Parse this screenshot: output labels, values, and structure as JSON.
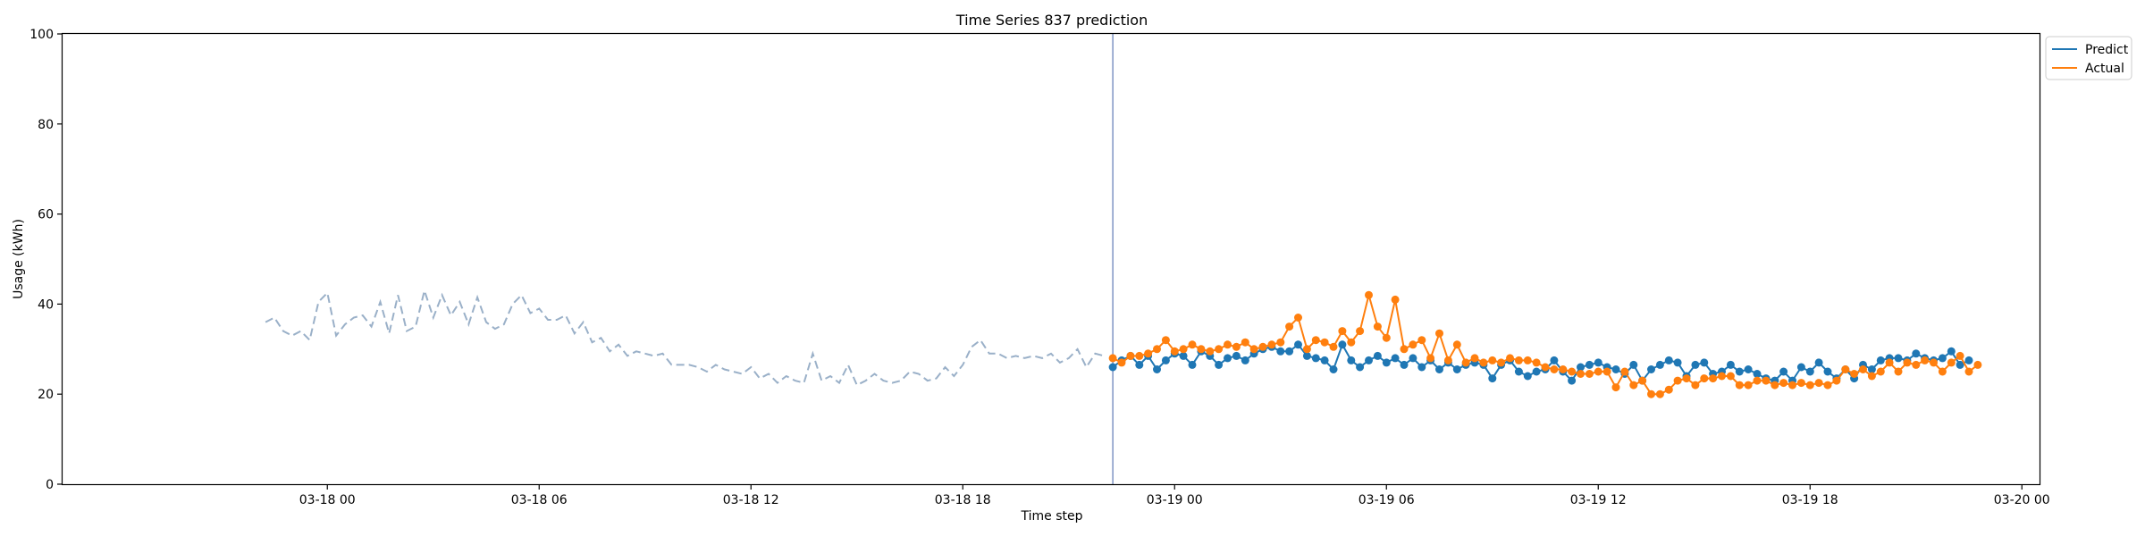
{
  "chart_data": {
    "type": "line",
    "title": "Time Series 837 prediction",
    "xlabel": "Time step",
    "ylabel": "Usage (kWh)",
    "ylim": [
      0,
      100
    ],
    "xlim": [
      "2024-03-17 16:30",
      "2024-03-20 00:30"
    ],
    "y_ticks": [
      0,
      20,
      40,
      60,
      80,
      100
    ],
    "x_ticks": [
      {
        "t": "2024-03-18 00:00",
        "label": "03-18 00"
      },
      {
        "t": "2024-03-18 06:00",
        "label": "03-18 06"
      },
      {
        "t": "2024-03-18 12:00",
        "label": "03-18 12"
      },
      {
        "t": "2024-03-18 18:00",
        "label": "03-18 18"
      },
      {
        "t": "2024-03-19 00:00",
        "label": "03-19 00"
      },
      {
        "t": "2024-03-19 06:00",
        "label": "03-19 06"
      },
      {
        "t": "2024-03-19 12:00",
        "label": "03-19 12"
      },
      {
        "t": "2024-03-19 18:00",
        "label": "03-19 18"
      },
      {
        "t": "2024-03-20 00:00",
        "label": "03-20 00"
      }
    ],
    "grid": false,
    "legend_position": "upper-right-outside",
    "forecast_start": "2024-03-18 22:15",
    "step_minutes": 15,
    "history": {
      "start": "2024-03-17 22:15",
      "color": "#9ab0c8",
      "values": [
        36,
        37,
        34,
        33,
        34,
        32,
        40.5,
        42.5,
        33,
        35.5,
        37,
        37.5,
        35,
        40.5,
        33.5,
        42,
        34,
        35,
        43,
        37,
        42,
        37.5,
        40.5,
        35.5,
        41.5,
        36,
        34.5,
        35.5,
        40,
        42,
        38,
        39,
        36.5,
        36.5,
        37.5,
        33.5,
        36,
        31.5,
        32.5,
        29.5,
        31,
        28.5,
        29.5,
        29,
        28.5,
        29,
        26.5,
        26.5,
        26.5,
        26,
        25,
        26.5,
        25.5,
        25,
        24.5,
        26,
        23.5,
        24.5,
        22.5,
        24,
        23,
        22.5,
        29,
        23,
        24,
        22.5,
        26.5,
        22,
        23,
        24.5,
        23,
        22.5,
        23,
        25,
        24.5,
        23,
        23.5,
        26,
        24,
        26.5,
        30.5,
        32,
        29,
        29,
        28,
        28.5,
        28,
        28.5,
        28,
        29,
        27,
        28,
        30,
        26,
        29,
        28.5
      ]
    },
    "series": [
      {
        "name": "Predict",
        "color": "#1f77b4",
        "start": "2024-03-18 22:15",
        "values": [
          26,
          27.5,
          28.5,
          26.5,
          28.5,
          25.5,
          27.5,
          29,
          28.5,
          26.5,
          29.5,
          28.5,
          26.5,
          28,
          28.5,
          27.5,
          29,
          30,
          30.5,
          29.5,
          29.5,
          31,
          28.5,
          28,
          27.5,
          25.5,
          31,
          27.5,
          26,
          27.5,
          28.5,
          27,
          28,
          26.5,
          28,
          26,
          27.5,
          25.5,
          27,
          25.5,
          26.5,
          27,
          26.5,
          23.5,
          26.5,
          27.5,
          25,
          24,
          25,
          25.5,
          27.5,
          25,
          23,
          26,
          26.5,
          27,
          26,
          25.5,
          24.5,
          26.5,
          23,
          25.5,
          26.5,
          27.5,
          27,
          24,
          26.5,
          27,
          24.5,
          25,
          26.5,
          25,
          25.5,
          24.5,
          23.5,
          23,
          25,
          23,
          26,
          25,
          27,
          25,
          23.5,
          25.5,
          23.5,
          26.5,
          25.5,
          27.5,
          28,
          28,
          27.5,
          29,
          28,
          27.5,
          28,
          29.5,
          26.5,
          27.5
        ]
      },
      {
        "name": "Actual",
        "color": "#ff7f0e",
        "start": "2024-03-18 22:15",
        "values": [
          28,
          27,
          28.5,
          28.5,
          29,
          30,
          32,
          29.5,
          30,
          31,
          30,
          29.5,
          30,
          31,
          30.5,
          31.5,
          30,
          30.5,
          31,
          31.5,
          35,
          37,
          30,
          32,
          31.5,
          30.5,
          34,
          31.5,
          34,
          42,
          35,
          32.5,
          41,
          30,
          31,
          32,
          28,
          33.5,
          27.5,
          31,
          27,
          28,
          27,
          27.5,
          27,
          28,
          27.5,
          27.5,
          27,
          26,
          25.5,
          25.5,
          25,
          24.5,
          24.5,
          25,
          25,
          21.5,
          25,
          22,
          23,
          20,
          20,
          21,
          23,
          23.5,
          22,
          23.5,
          23.5,
          24,
          24,
          22,
          22,
          23,
          23,
          22,
          22.5,
          22,
          22.5,
          22,
          22.5,
          22,
          23,
          25.5,
          24.5,
          25.5,
          24,
          25,
          27,
          25,
          27,
          26.5,
          27.5,
          27,
          25,
          27,
          28.5,
          25,
          26.5
        ]
      }
    ]
  }
}
